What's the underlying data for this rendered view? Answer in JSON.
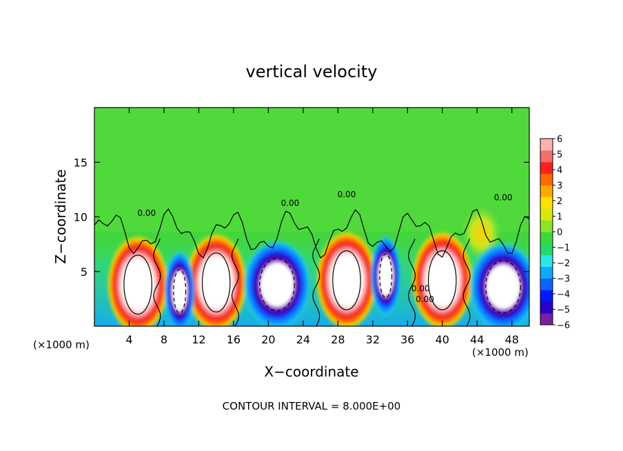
{
  "chart_data": {
    "type": "heatmap",
    "title": "vertical velocity",
    "xlabel": "X−coordinate",
    "ylabel": "Z−coordinate",
    "x_unit_left": "(×1000 m)",
    "x_unit_right": "(×1000 m)",
    "footer": "CONTOUR INTERVAL = 8.000E+00",
    "xlim": [
      0,
      50
    ],
    "ylim": [
      0,
      20
    ],
    "x_ticks": [
      4,
      8,
      12,
      16,
      20,
      24,
      28,
      32,
      36,
      40,
      44,
      48
    ],
    "x_tick_labels": [
      "4",
      "8",
      "12",
      "16",
      "20",
      "24",
      "28",
      "32",
      "36",
      "40",
      "44",
      "48"
    ],
    "y_ticks": [
      5,
      10,
      15
    ],
    "y_tick_labels": [
      "5",
      "10",
      "15"
    ],
    "colorbar": {
      "range": [
        -6,
        6
      ],
      "ticks": [
        6,
        5,
        4,
        3,
        2,
        1,
        0,
        -1,
        -2,
        -3,
        -4,
        -5,
        -6
      ],
      "tick_labels": [
        "6",
        "5",
        "4",
        "3",
        "2",
        "1",
        "0",
        "−1",
        "−2",
        "−3",
        "−4",
        "−5",
        "−6"
      ],
      "colors": [
        "#7b1fa2",
        "#2b00c8",
        "#0018ff",
        "#0b62ff",
        "#11a8ff",
        "#2ee6e6",
        "#27d86f",
        "#3ad93a",
        "#8ee32b",
        "#d8e80f",
        "#ffe000",
        "#ffaa00",
        "#ff6a00",
        "#ff1f1f",
        "#f07070",
        "#ffb0b0"
      ]
    },
    "contour_labels": [
      "0.00",
      "0.00",
      "0.00",
      "0.00",
      "0.00",
      "0.00"
    ],
    "updrafts": [
      {
        "x": 5,
        "z": 3.8,
        "sign": "positive"
      },
      {
        "x": 14,
        "z": 4.0,
        "sign": "positive"
      },
      {
        "x": 29,
        "z": 4.2,
        "sign": "positive"
      },
      {
        "x": 40,
        "z": 4.2,
        "sign": "positive"
      },
      {
        "x": 44.5,
        "z": 8.5,
        "sign": "positive"
      }
    ],
    "downdrafts": [
      {
        "x": 9.8,
        "z": 3.2,
        "sign": "negative"
      },
      {
        "x": 21,
        "z": 3.8,
        "sign": "negative"
      },
      {
        "x": 33.5,
        "z": 4.6,
        "sign": "negative"
      },
      {
        "x": 47,
        "z": 3.6,
        "sign": "negative"
      }
    ]
  }
}
